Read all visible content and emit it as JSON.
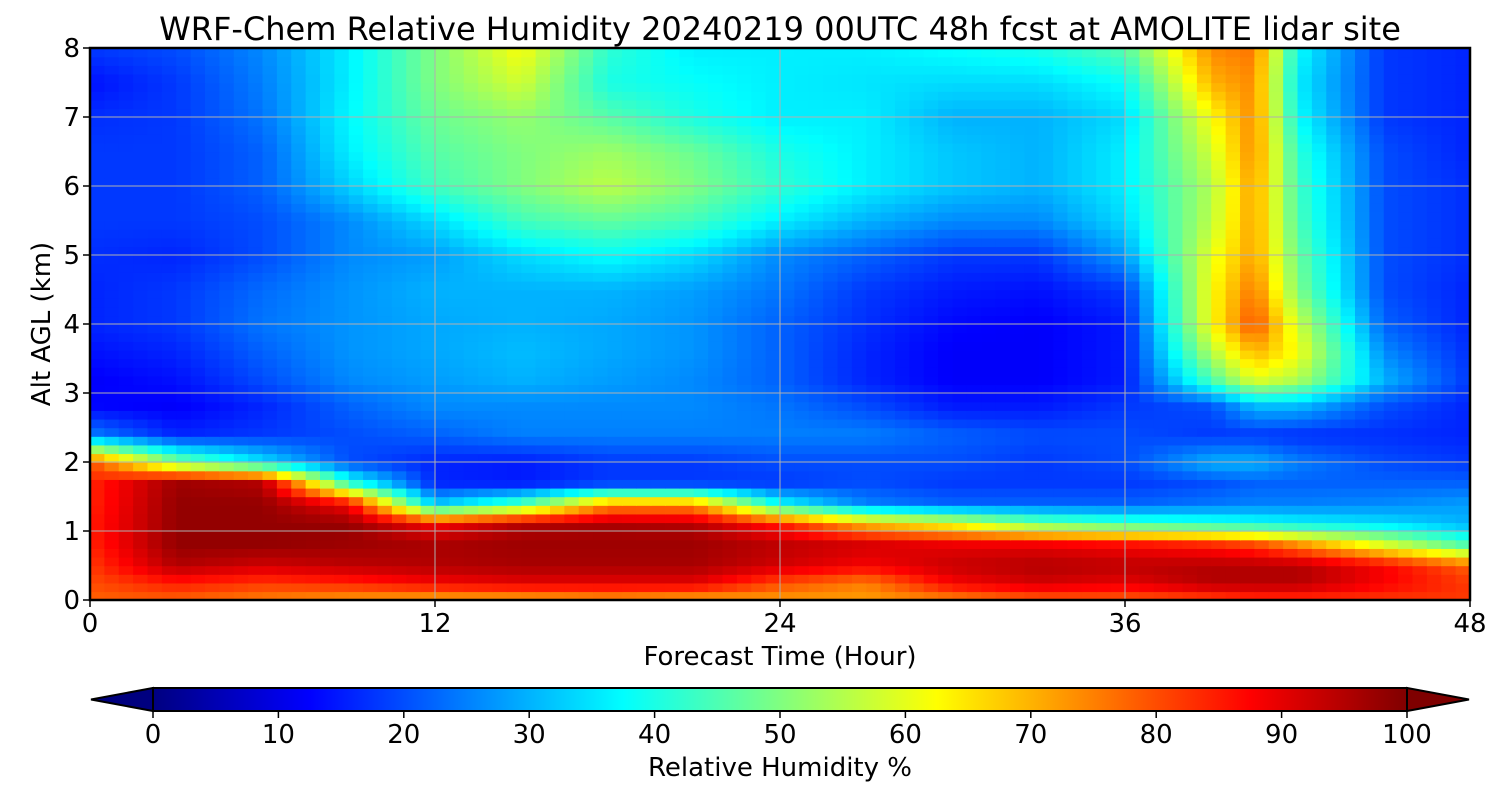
{
  "chart_data": {
    "type": "heatmap",
    "title": "WRF-Chem Relative Humidity 20240219 00UTC 48h fcst at AMOLITE lidar site",
    "xlabel": "Forecast Time (Hour)",
    "ylabel": "Alt AGL (km)",
    "xlim": [
      0,
      48
    ],
    "ylim": [
      0,
      8
    ],
    "x_ticks": [
      "0",
      "12",
      "24",
      "36",
      "48"
    ],
    "y_ticks": [
      "0",
      "1",
      "2",
      "3",
      "4",
      "5",
      "6",
      "7",
      "8"
    ],
    "grid": true,
    "colormap": "jet",
    "colorbar": {
      "label": "Relative Humidity %",
      "min": 0,
      "max": 100,
      "ticks": [
        "0",
        "10",
        "20",
        "30",
        "40",
        "50",
        "60",
        "70",
        "80",
        "90",
        "100"
      ],
      "extend": "both",
      "placement": "bottom"
    },
    "hours": [
      0,
      3,
      6,
      9,
      12,
      15,
      18,
      21,
      24,
      27,
      30,
      33,
      36,
      39,
      40.5,
      42,
      45,
      48
    ],
    "altitudes_km": [
      0,
      0.25,
      0.5,
      0.8,
      1.1,
      1.4,
      1.7,
      2.0,
      2.4,
      2.8,
      3.2,
      3.6,
      4.0,
      4.5,
      5.0,
      5.5,
      6.0,
      6.5,
      7.0,
      7.5,
      8.0
    ],
    "rh_percent": [
      [
        78,
        78,
        75,
        72,
        70,
        70,
        72,
        70,
        72,
        72,
        74,
        78,
        78,
        80,
        82,
        82,
        82,
        82
      ],
      [
        80,
        85,
        82,
        84,
        88,
        90,
        90,
        90,
        80,
        75,
        88,
        92,
        90,
        95,
        95,
        95,
        88,
        82
      ],
      [
        82,
        95,
        92,
        94,
        95,
        96,
        96,
        96,
        92,
        88,
        93,
        95,
        94,
        95,
        95,
        95,
        88,
        78
      ],
      [
        84,
        98,
        98,
        97,
        96,
        97,
        97,
        97,
        94,
        92,
        90,
        90,
        88,
        85,
        82,
        75,
        60,
        45
      ],
      [
        85,
        98,
        98,
        98,
        88,
        95,
        96,
        95,
        85,
        70,
        62,
        50,
        45,
        42,
        40,
        38,
        35,
        30
      ],
      [
        84,
        98,
        98,
        88,
        32,
        45,
        72,
        72,
        38,
        25,
        22,
        22,
        22,
        24,
        25,
        25,
        26,
        28
      ],
      [
        84,
        97,
        95,
        42,
        16,
        15,
        18,
        18,
        18,
        20,
        18,
        18,
        18,
        20,
        22,
        22,
        22,
        22
      ],
      [
        80,
        50,
        35,
        20,
        16,
        15,
        18,
        18,
        20,
        20,
        20,
        18,
        20,
        30,
        30,
        25,
        20,
        18
      ],
      [
        25,
        16,
        18,
        20,
        22,
        25,
        25,
        25,
        25,
        25,
        22,
        20,
        20,
        18,
        18,
        17,
        17,
        16
      ],
      [
        13,
        12,
        16,
        22,
        26,
        26,
        26,
        26,
        24,
        20,
        15,
        15,
        18,
        20,
        30,
        30,
        20,
        16
      ],
      [
        12,
        14,
        20,
        26,
        28,
        30,
        28,
        26,
        22,
        16,
        12,
        12,
        15,
        45,
        60,
        55,
        30,
        18
      ],
      [
        14,
        16,
        22,
        27,
        29,
        31,
        29,
        27,
        22,
        16,
        12,
        12,
        15,
        55,
        70,
        62,
        26,
        17
      ],
      [
        16,
        18,
        24,
        27,
        29,
        30,
        29,
        27,
        22,
        17,
        13,
        12,
        15,
        62,
        80,
        58,
        22,
        16
      ],
      [
        16,
        18,
        23,
        27,
        30,
        30,
        30,
        28,
        24,
        18,
        15,
        14,
        18,
        62,
        76,
        50,
        20,
        16
      ],
      [
        17,
        16,
        20,
        26,
        28,
        34,
        38,
        34,
        26,
        22,
        18,
        18,
        28,
        60,
        72,
        48,
        20,
        17
      ],
      [
        18,
        18,
        20,
        26,
        34,
        44,
        47,
        44,
        36,
        30,
        26,
        26,
        34,
        56,
        72,
        45,
        20,
        17
      ],
      [
        18,
        18,
        22,
        33,
        44,
        50,
        56,
        50,
        42,
        36,
        32,
        30,
        36,
        55,
        72,
        44,
        20,
        17
      ],
      [
        18,
        18,
        22,
        36,
        46,
        50,
        53,
        48,
        40,
        36,
        32,
        30,
        36,
        58,
        74,
        42,
        20,
        16
      ],
      [
        17,
        18,
        24,
        37,
        48,
        52,
        46,
        40,
        36,
        36,
        30,
        30,
        34,
        62,
        74,
        38,
        18,
        16
      ],
      [
        14,
        18,
        25,
        36,
        50,
        58,
        40,
        38,
        36,
        35,
        34,
        34,
        38,
        70,
        74,
        36,
        18,
        16
      ],
      [
        18,
        20,
        26,
        36,
        50,
        62,
        42,
        36,
        36,
        36,
        38,
        40,
        46,
        74,
        76,
        38,
        18,
        16
      ]
    ]
  }
}
